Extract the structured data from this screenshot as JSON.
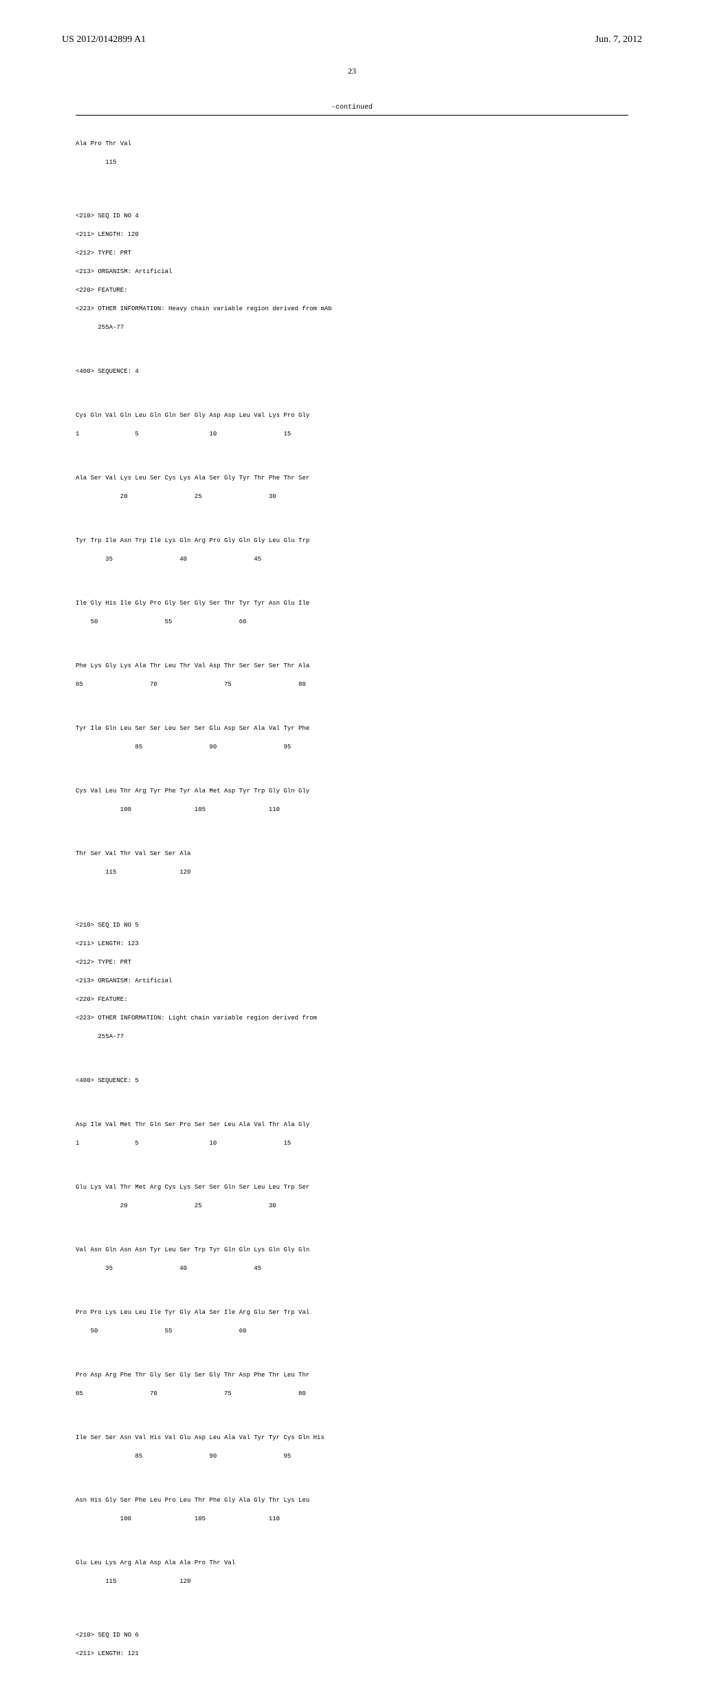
{
  "header": {
    "pub_number": "US 2012/0142899 A1",
    "date": "Jun. 7, 2012"
  },
  "page_number": "23",
  "continued_label": "-continued",
  "seq3_tail": {
    "row1": "Ala Pro Thr Val",
    "num1": "        115"
  },
  "seq4": {
    "meta": [
      "<210> SEQ ID NO 4",
      "<211> LENGTH: 120",
      "<212> TYPE: PRT",
      "<213> ORGANISM: Artificial",
      "<220> FEATURE:",
      "<223> OTHER INFORMATION: Heavy chain variable region derived from mAb",
      "      255A-77"
    ],
    "seq_label": "<400> SEQUENCE: 4",
    "rows": [
      {
        "aa": "Cys Gln Val Gln Leu Gln Gln Ser Gly Asp Asp Leu Val Lys Pro Gly",
        "num": "1               5                   10                  15"
      },
      {
        "aa": "Ala Ser Val Lys Leu Ser Cys Lys Ala Ser Gly Tyr Thr Phe Thr Ser",
        "num": "            20                  25                  30"
      },
      {
        "aa": "Tyr Trp Ile Asn Trp Ile Lys Gln Arg Pro Gly Gln Gly Leu Glu Trp",
        "num": "        35                  40                  45"
      },
      {
        "aa": "Ile Gly His Ile Gly Pro Gly Ser Gly Ser Thr Tyr Tyr Asn Glu Ile",
        "num": "    50                  55                  60"
      },
      {
        "aa": "Phe Lys Gly Lys Ala Thr Leu Thr Val Asp Thr Ser Ser Ser Thr Ala",
        "num": "65                  70                  75                  80"
      },
      {
        "aa": "Tyr Ile Gln Leu Ser Ser Leu Ser Ser Glu Asp Ser Ala Val Tyr Phe",
        "num": "                85                  90                  95"
      },
      {
        "aa": "Cys Val Leu Thr Arg Tyr Phe Tyr Ala Met Asp Tyr Trp Gly Gln Gly",
        "num": "            100                 105                 110"
      },
      {
        "aa": "Thr Ser Val Thr Val Ser Ser Ala",
        "num": "        115                 120"
      }
    ]
  },
  "seq5": {
    "meta": [
      "<210> SEQ ID NO 5",
      "<211> LENGTH: 123",
      "<212> TYPE: PRT",
      "<213> ORGANISM: Artificial",
      "<220> FEATURE:",
      "<223> OTHER INFORMATION: Light chain variable region derived from",
      "      255A-77"
    ],
    "seq_label": "<400> SEQUENCE: 5",
    "rows": [
      {
        "aa": "Asp Ile Val Met Thr Gln Ser Pro Ser Ser Leu Ala Val Thr Ala Gly",
        "num": "1               5                   10                  15"
      },
      {
        "aa": "Glu Lys Val Thr Met Arg Cys Lys Ser Ser Gln Ser Leu Leu Trp Ser",
        "num": "            20                  25                  30"
      },
      {
        "aa": "Val Asn Gln Asn Asn Tyr Leu Ser Trp Tyr Gln Gln Lys Gln Gly Gln",
        "num": "        35                  40                  45"
      },
      {
        "aa": "Pro Pro Lys Leu Leu Ile Tyr Gly Ala Ser Ile Arg Glu Ser Trp Val",
        "num": "    50                  55                  60"
      },
      {
        "aa": "Pro Asp Arg Phe Thr Gly Ser Gly Ser Gly Thr Asp Phe Thr Leu Thr",
        "num": "65                  70                  75                  80"
      },
      {
        "aa": "Ile Ser Ser Asn Val His Val Glu Asp Leu Ala Val Tyr Tyr Cys Gln His",
        "num": "                85                  90                  95"
      },
      {
        "aa": "Asn His Gly Ser Phe Leu Pro Leu Thr Phe Gly Ala Gly Thr Lys Leu",
        "num": "            100                 105                 110"
      },
      {
        "aa": "Glu Leu Lys Arg Ala Asp Ala Ala Pro Thr Val",
        "num": "        115                 120"
      }
    ]
  },
  "seq6": {
    "meta": [
      "<210> SEQ ID NO 6",
      "<211> LENGTH: 121"
    ]
  }
}
